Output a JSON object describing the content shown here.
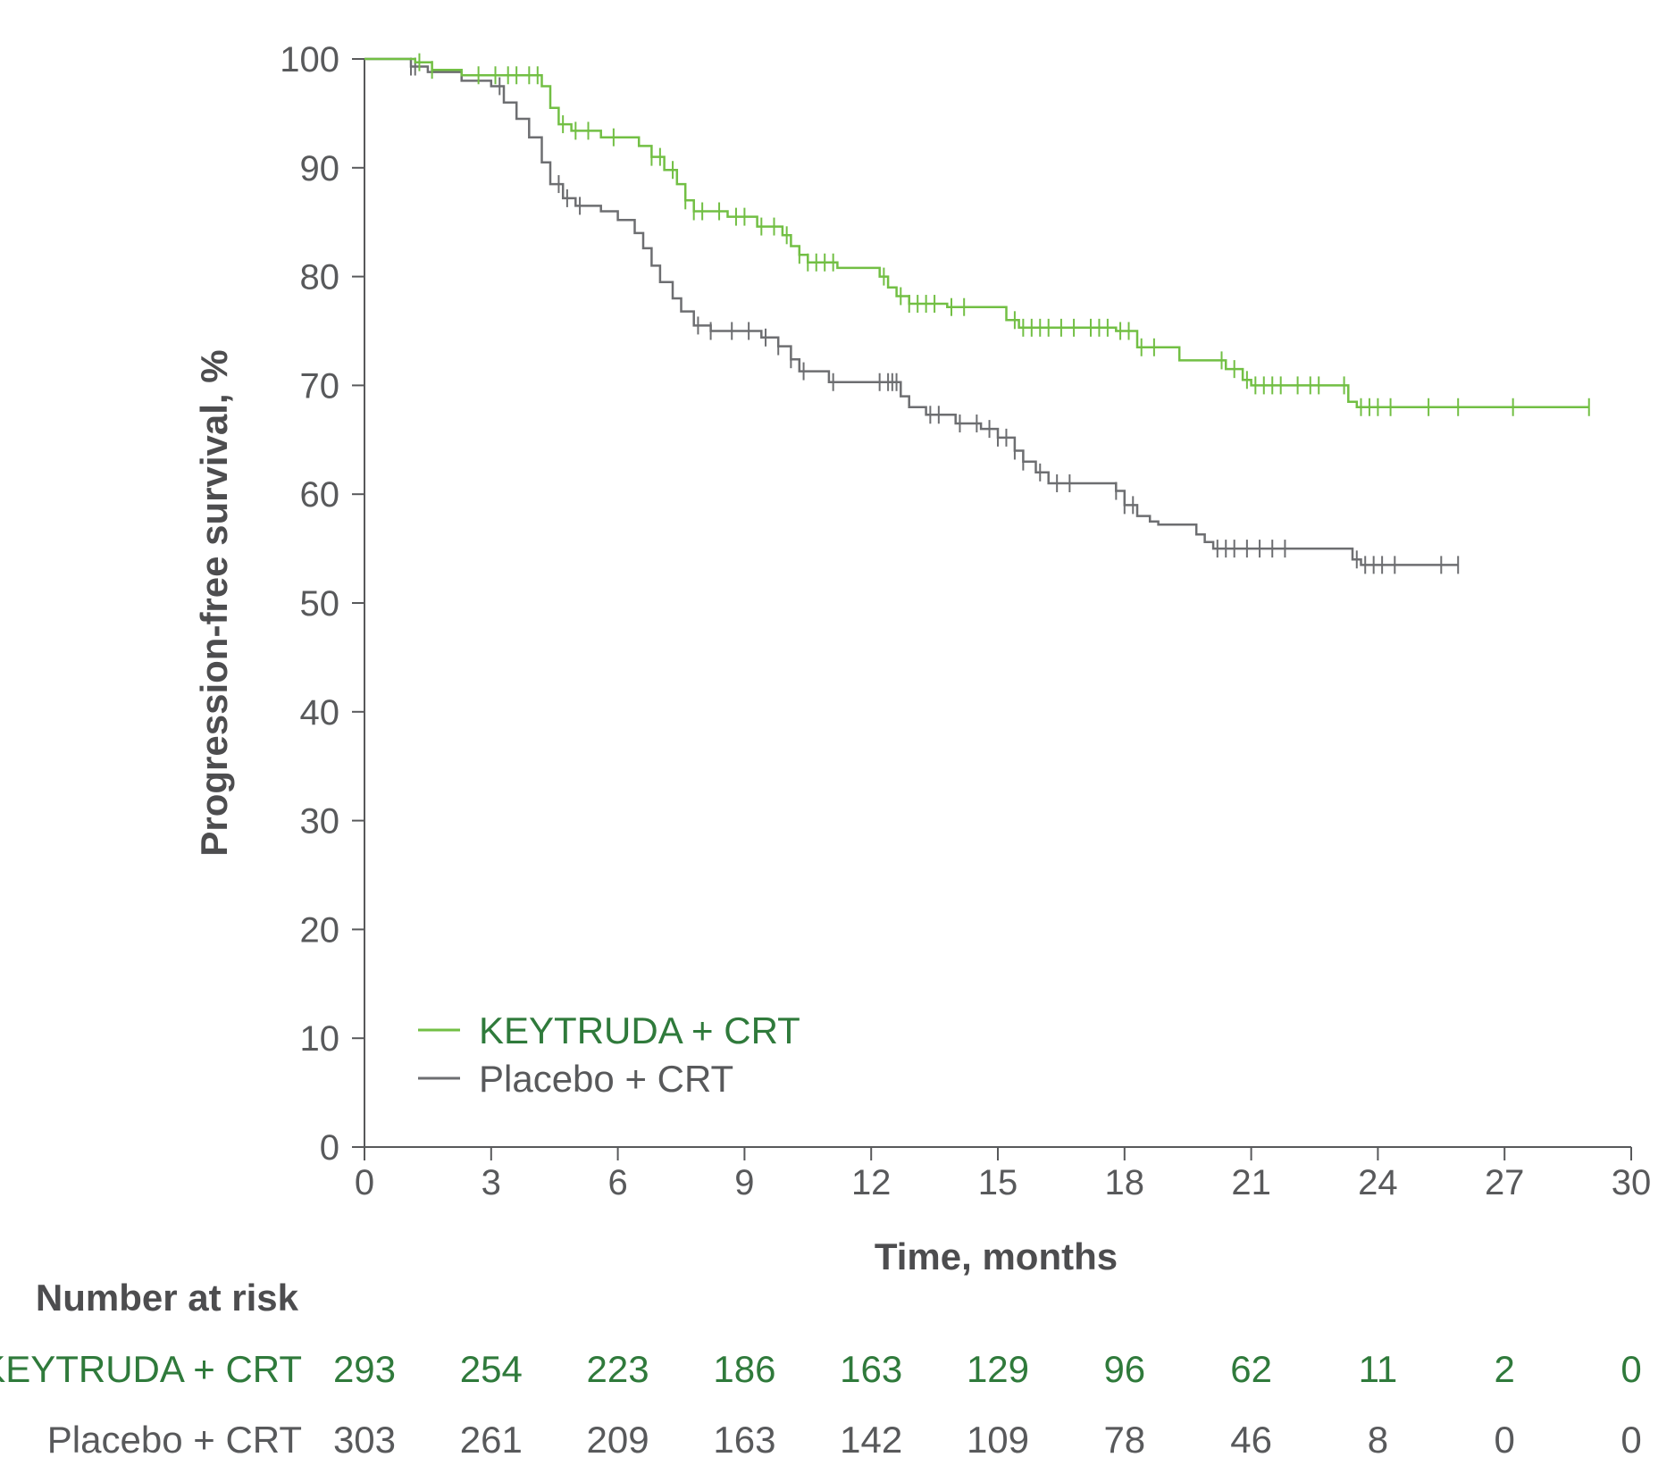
{
  "colors": {
    "keytruda": "#72bf44",
    "placebo": "#6d6e71",
    "keytruda_text": "#2f7a3b",
    "placebo_text": "#58595b",
    "axis": "#58595b"
  },
  "chart_data": {
    "type": "line",
    "title": "",
    "xlabel": "Time, months",
    "ylabel": "Progression-free survival, %",
    "xlim": [
      0,
      30
    ],
    "ylim": [
      0,
      100
    ],
    "xticks": [
      0,
      3,
      6,
      9,
      12,
      15,
      18,
      21,
      24,
      27,
      30
    ],
    "yticks": [
      0,
      10,
      20,
      30,
      40,
      50,
      60,
      70,
      80,
      90,
      100
    ],
    "grid": false,
    "legend_position": "bottom-left",
    "series": [
      {
        "name": "KEYTRUDA + CRT",
        "color_key": "keytruda",
        "steps": [
          [
            0,
            100
          ],
          [
            1.2,
            99.7
          ],
          [
            1.6,
            99.0
          ],
          [
            2.3,
            98.5
          ],
          [
            4.2,
            97.5
          ],
          [
            4.4,
            95.5
          ],
          [
            4.6,
            94.0
          ],
          [
            4.9,
            93.4
          ],
          [
            5.6,
            92.8
          ],
          [
            6.5,
            92.0
          ],
          [
            6.8,
            91.0
          ],
          [
            7.1,
            89.8
          ],
          [
            7.4,
            88.5
          ],
          [
            7.6,
            87.0
          ],
          [
            7.8,
            86.0
          ],
          [
            8.6,
            85.5
          ],
          [
            9.3,
            84.6
          ],
          [
            9.9,
            83.8
          ],
          [
            10.1,
            82.8
          ],
          [
            10.3,
            82.0
          ],
          [
            10.5,
            81.3
          ],
          [
            11.2,
            80.8
          ],
          [
            12.2,
            80.0
          ],
          [
            12.4,
            79.0
          ],
          [
            12.6,
            78.2
          ],
          [
            12.9,
            77.5
          ],
          [
            13.8,
            77.2
          ],
          [
            15.2,
            76.0
          ],
          [
            15.5,
            75.3
          ],
          [
            17.8,
            75.0
          ],
          [
            18.3,
            73.5
          ],
          [
            19.3,
            72.3
          ],
          [
            20.4,
            71.5
          ],
          [
            20.8,
            70.5
          ],
          [
            21.0,
            70.0
          ],
          [
            23.3,
            68.5
          ],
          [
            23.5,
            68.0
          ],
          [
            29.0,
            68.0
          ]
        ],
        "censor_times": [
          1.3,
          1.6,
          2.7,
          3.1,
          3.4,
          3.6,
          3.9,
          4.1,
          4.7,
          5.0,
          5.3,
          5.9,
          6.8,
          7.0,
          7.3,
          7.6,
          7.8,
          8.0,
          8.4,
          8.8,
          9.0,
          9.4,
          9.7,
          10.0,
          10.3,
          10.5,
          10.7,
          10.9,
          11.1,
          12.3,
          12.7,
          12.9,
          13.1,
          13.3,
          13.5,
          13.9,
          14.2,
          15.4,
          15.6,
          15.8,
          16.0,
          16.2,
          16.5,
          16.8,
          17.2,
          17.4,
          17.6,
          17.9,
          18.1,
          18.4,
          18.7,
          20.3,
          20.6,
          20.9,
          21.1,
          21.3,
          21.5,
          21.7,
          22.1,
          22.4,
          22.6,
          23.2,
          23.6,
          23.8,
          24.0,
          24.3,
          25.2,
          25.9,
          27.2,
          29.0
        ]
      },
      {
        "name": "Placebo + CRT",
        "color_key": "placebo",
        "steps": [
          [
            0,
            100
          ],
          [
            1.1,
            99.3
          ],
          [
            1.5,
            98.8
          ],
          [
            2.3,
            98.0
          ],
          [
            3.0,
            97.5
          ],
          [
            3.3,
            96.0
          ],
          [
            3.6,
            94.5
          ],
          [
            3.9,
            92.8
          ],
          [
            4.2,
            90.5
          ],
          [
            4.4,
            88.5
          ],
          [
            4.7,
            87.2
          ],
          [
            5.0,
            86.5
          ],
          [
            5.6,
            86.0
          ],
          [
            6.0,
            85.2
          ],
          [
            6.4,
            84.0
          ],
          [
            6.6,
            82.6
          ],
          [
            6.8,
            81.0
          ],
          [
            7.0,
            79.5
          ],
          [
            7.3,
            78.0
          ],
          [
            7.5,
            76.8
          ],
          [
            7.8,
            75.5
          ],
          [
            8.2,
            75.0
          ],
          [
            9.4,
            74.4
          ],
          [
            9.8,
            73.6
          ],
          [
            10.1,
            72.4
          ],
          [
            10.3,
            71.3
          ],
          [
            11.0,
            70.3
          ],
          [
            12.7,
            69.0
          ],
          [
            12.9,
            68.0
          ],
          [
            13.3,
            67.3
          ],
          [
            14.0,
            66.5
          ],
          [
            14.6,
            66.0
          ],
          [
            15.0,
            65.2
          ],
          [
            15.4,
            64.0
          ],
          [
            15.6,
            63.0
          ],
          [
            15.9,
            62.0
          ],
          [
            16.2,
            61.0
          ],
          [
            17.8,
            60.3
          ],
          [
            18.0,
            59.0
          ],
          [
            18.3,
            58.0
          ],
          [
            18.6,
            57.5
          ],
          [
            18.8,
            57.2
          ],
          [
            19.7,
            56.3
          ],
          [
            19.9,
            55.6
          ],
          [
            20.1,
            55.0
          ],
          [
            23.4,
            54.0
          ],
          [
            23.6,
            53.5
          ],
          [
            25.9,
            53.5
          ]
        ],
        "censor_times": [
          1.1,
          1.2,
          3.2,
          4.6,
          4.8,
          5.1,
          7.9,
          8.2,
          8.7,
          9.1,
          9.5,
          9.8,
          10.1,
          10.4,
          11.1,
          12.2,
          12.4,
          12.5,
          12.6,
          13.4,
          13.6,
          14.1,
          14.5,
          14.8,
          15.0,
          15.2,
          15.4,
          15.6,
          16.0,
          16.4,
          16.7,
          17.8,
          18.0,
          18.2,
          20.2,
          20.4,
          20.6,
          20.9,
          21.2,
          21.5,
          21.8,
          23.5,
          23.7,
          23.9,
          24.1,
          24.4,
          25.5,
          25.9
        ]
      }
    ],
    "number_at_risk": {
      "heading": "Number at risk",
      "rows": [
        {
          "label": "KEYTRUDA + CRT",
          "color_key": "keytruda_text",
          "values": [
            "293",
            "254",
            "223",
            "186",
            "163",
            "129",
            "96",
            "62",
            "11",
            "2",
            "0"
          ]
        },
        {
          "label": "Placebo + CRT",
          "color_key": "placebo_text",
          "values": [
            "303",
            "261",
            "209",
            "163",
            "142",
            "109",
            "78",
            "46",
            "8",
            "0",
            "0"
          ]
        }
      ]
    }
  }
}
